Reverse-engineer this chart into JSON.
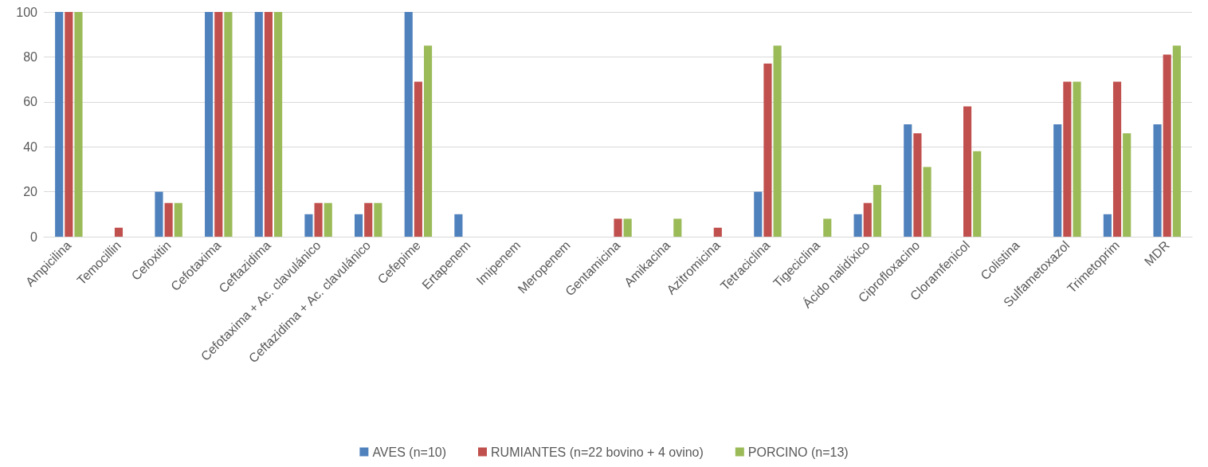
{
  "chart_data": {
    "type": "bar",
    "categories": [
      "Ampicilina",
      "Temocillin",
      "Cefoxitin",
      "Cefotaxima",
      "Ceftazidima",
      "Cefotaxima + Ac. clavulánico",
      "Ceftazidima + Ac. clavulánico",
      "Cefepime",
      "Ertapenem",
      "Imipenem",
      "Meropenem",
      "Gentamicina",
      "Amikacina",
      "Azitromicina",
      "Tetraciclina",
      "Tigeciclina",
      "Ácido nalidíxico",
      "Ciprofloxacino",
      "Cloramfenicol",
      "Colistina",
      "Sulfametoxazol",
      "Trimetoprim",
      "MDR"
    ],
    "series": [
      {
        "name": "AVES (n=10)",
        "color": "#4f81bd",
        "values": [
          100,
          0,
          20,
          100,
          100,
          10,
          10,
          100,
          10,
          0,
          0,
          0,
          0,
          0,
          20,
          0,
          10,
          50,
          0,
          0,
          50,
          10,
          50
        ]
      },
      {
        "name": "RUMIANTES (n=22 bovino + 4 ovino)",
        "color": "#c0504d",
        "values": [
          100,
          4,
          15,
          100,
          100,
          15,
          15,
          69,
          0,
          0,
          0,
          8,
          0,
          4,
          77,
          0,
          15,
          46,
          58,
          0,
          69,
          69,
          81
        ]
      },
      {
        "name": "PORCINO (n=13)",
        "color": "#9bbb59",
        "values": [
          100,
          0,
          15,
          100,
          100,
          15,
          15,
          85,
          0,
          0,
          0,
          8,
          8,
          0,
          85,
          8,
          23,
          31,
          38,
          0,
          69,
          46,
          85
        ]
      }
    ],
    "ylim": [
      0,
      100
    ],
    "yticks": [
      0,
      20,
      40,
      60,
      80,
      100
    ],
    "grid": "y",
    "legend": "bottom"
  }
}
